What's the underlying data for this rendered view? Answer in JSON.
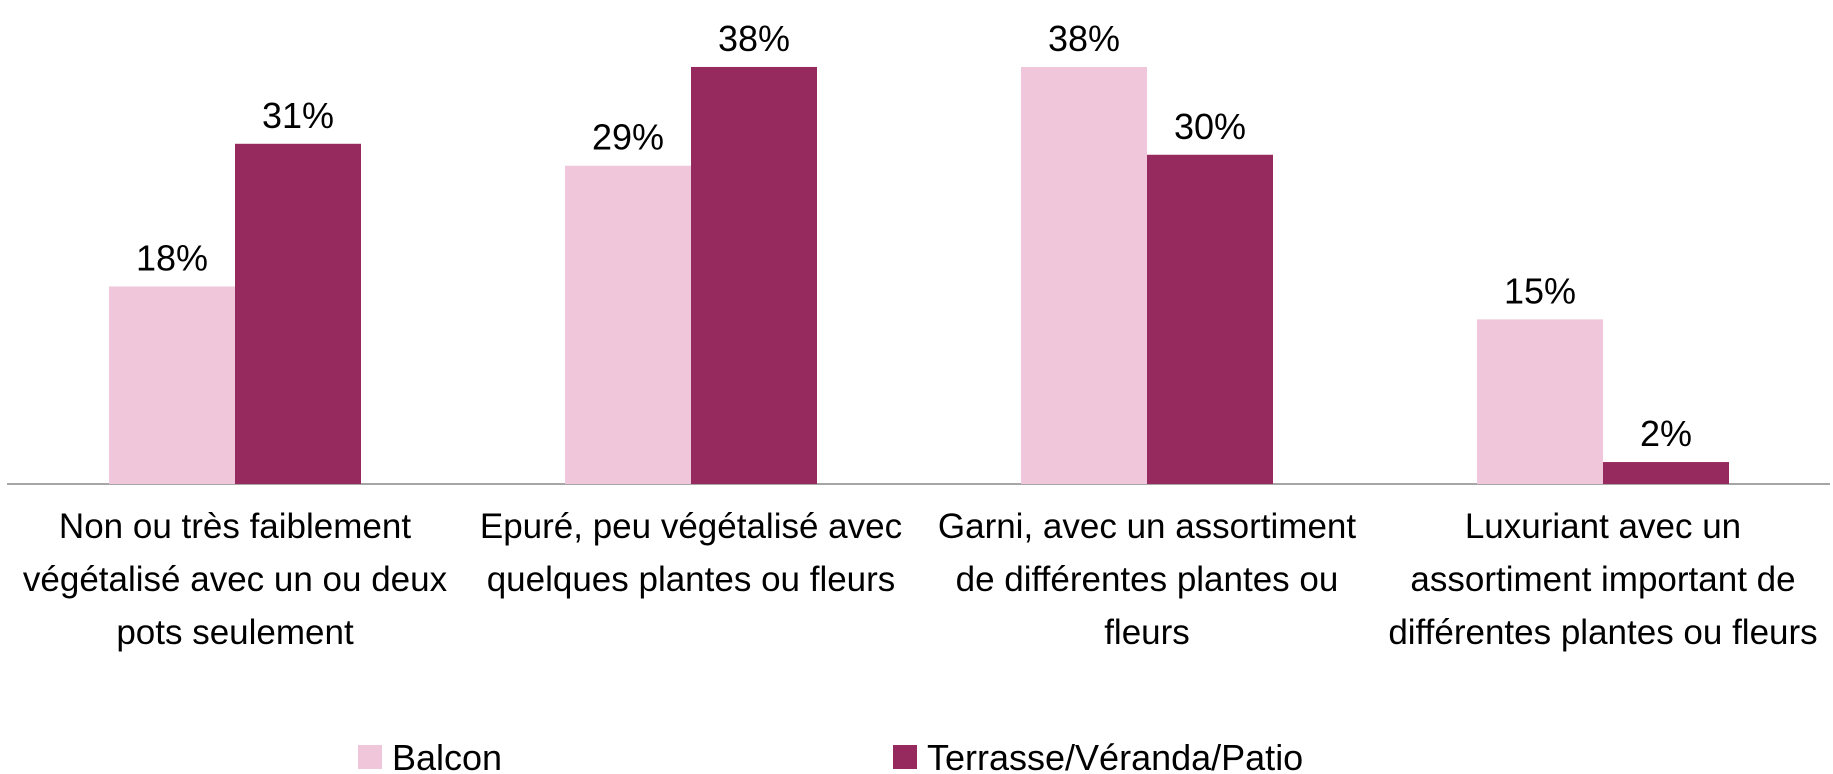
{
  "chart_data": {
    "type": "bar",
    "categories": [
      "Non ou très faiblement végétalisé avec un ou deux pots seulement",
      "Epuré, peu végétalisé avec quelques plantes ou fleurs",
      "Garni, avec un assortiment de différentes plantes ou fleurs",
      "Luxuriant avec un assortiment important de différentes plantes ou fleurs"
    ],
    "series": [
      {
        "name": "Balcon",
        "color": "#efc6da",
        "values": [
          18,
          29,
          38,
          15
        ],
        "value_labels": [
          "18%",
          "29%",
          "38%",
          "15%"
        ]
      },
      {
        "name": "Terrasse/Véranda/Patio",
        "color": "#96295e",
        "values": [
          31,
          38,
          30,
          2
        ],
        "value_labels": [
          "31%",
          "38%",
          "30%",
          "2%"
        ]
      }
    ],
    "legend": "bottom"
  }
}
